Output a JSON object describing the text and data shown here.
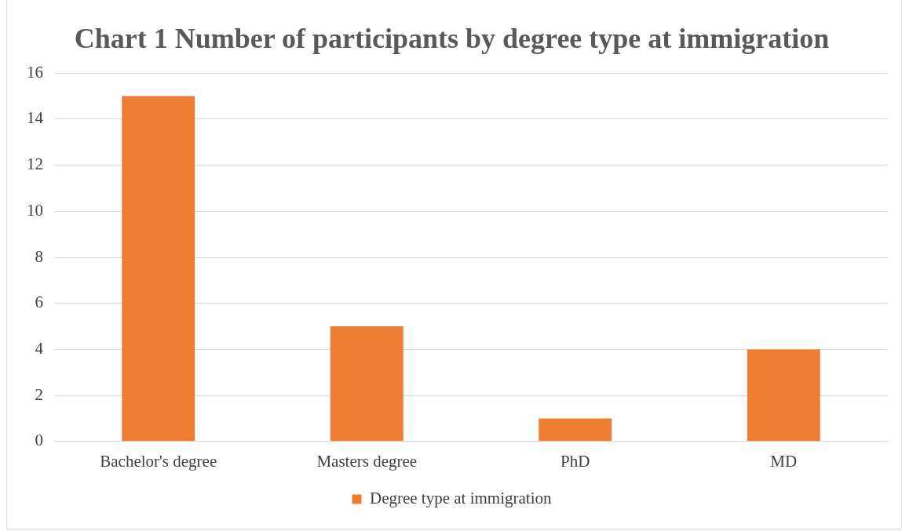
{
  "chart_data": {
    "type": "bar",
    "title": "Chart 1 Number of participants by degree type at immigration",
    "categories": [
      "Bachelor's degree",
      "Masters degree",
      "PhD",
      "MD"
    ],
    "series": [
      {
        "name": "Degree type at immigration",
        "color": "#ed7d31",
        "values": [
          15,
          5,
          1,
          4
        ]
      }
    ],
    "ylim": [
      0,
      16
    ],
    "yticks": [
      0,
      2,
      4,
      6,
      8,
      10,
      12,
      14,
      16
    ],
    "grid": "y",
    "legend": "bottom"
  }
}
